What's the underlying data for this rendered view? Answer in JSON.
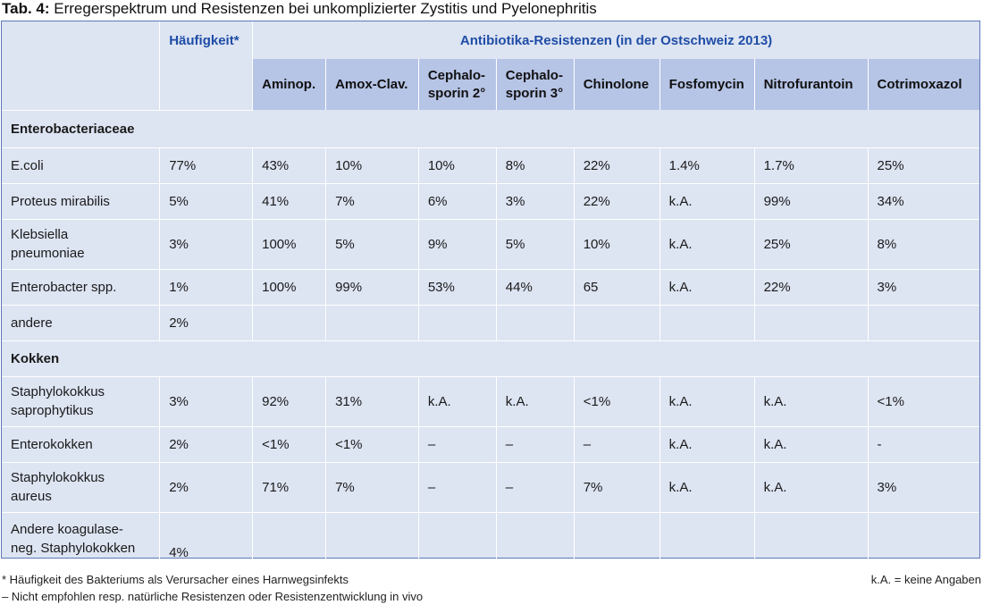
{
  "caption": {
    "label": "Tab. 4:",
    "text": " Erregerspektrum und Resistenzen bei unkomplizierter Zystitis und Pyelonephritis"
  },
  "header": {
    "frequency": "Häufigkeit*",
    "resistances": "Antibiotika-Resistenzen (in der Ostschweiz 2013)",
    "antibiotics": [
      "Aminop.",
      "Amox-Clav.",
      "Cephalo-\nsporin 2°",
      "Cephalo-\nsporin 3°",
      "Chinolone",
      "Fosfomycin",
      "Nitrofurantoin",
      "Cotrimoxazol"
    ]
  },
  "rows": [
    {
      "type": "section",
      "label": "Enterobacteriaceae"
    },
    {
      "type": "data",
      "label": "E.coli",
      "freq": "77%",
      "values": [
        "43%",
        "10%",
        "10%",
        "8%",
        "22%",
        "1.4%",
        "1.7%",
        "25%"
      ]
    },
    {
      "type": "data",
      "label": "Proteus mirabilis",
      "freq": "5%",
      "values": [
        "41%",
        "7%",
        "6%",
        "3%",
        "22%",
        "k.A.",
        "99%",
        "34%"
      ]
    },
    {
      "type": "data",
      "label": "Klebsiella\npneumoniae",
      "freq": "3%",
      "values": [
        "100%",
        "5%",
        "9%",
        "5%",
        "10%",
        "k.A.",
        "25%",
        "8%"
      ]
    },
    {
      "type": "data",
      "label": "Enterobacter spp.",
      "freq": "1%",
      "values": [
        "100%",
        "99%",
        "53%",
        "44%",
        "65",
        "k.A.",
        "22%",
        "3%"
      ]
    },
    {
      "type": "data",
      "label": "andere",
      "freq": "2%",
      "values": [
        "",
        "",
        "",
        "",
        "",
        "",
        "",
        ""
      ]
    },
    {
      "type": "section",
      "label": "Kokken"
    },
    {
      "type": "data",
      "label": "Staphylokokkus\nsaprophytikus",
      "freq": "3%",
      "values": [
        "92%",
        "31%",
        "k.A.",
        "k.A.",
        "<1%",
        "k.A.",
        "k.A.",
        "<1%"
      ]
    },
    {
      "type": "data",
      "label": "Enterokokken",
      "freq": "2%",
      "values": [
        "<1%",
        "<1%",
        "–",
        "–",
        "–",
        "k.A.",
        "k.A.",
        "-"
      ]
    },
    {
      "type": "data",
      "label": "Staphylokokkus\naureus",
      "freq": "2%",
      "values": [
        "71%",
        "7%",
        "–",
        "–",
        "7%",
        "k.A.",
        "k.A.",
        "3%"
      ]
    },
    {
      "type": "data",
      "label": "Andere koagulase-\nneg. Staphylokokken",
      "freq": "4%",
      "values": [
        "",
        "",
        "",
        "",
        "",
        "",
        "",
        ""
      ]
    }
  ],
  "footnotes": {
    "note1": "* Häufigkeit des Bakteriums als Verursacher eines Harnwegsinfekts",
    "note2": "– Nicht empfohlen resp. natürliche Resistenzen oder Resistenzentwicklung in vivo",
    "legend": "k.A. = keine Angaben"
  }
}
